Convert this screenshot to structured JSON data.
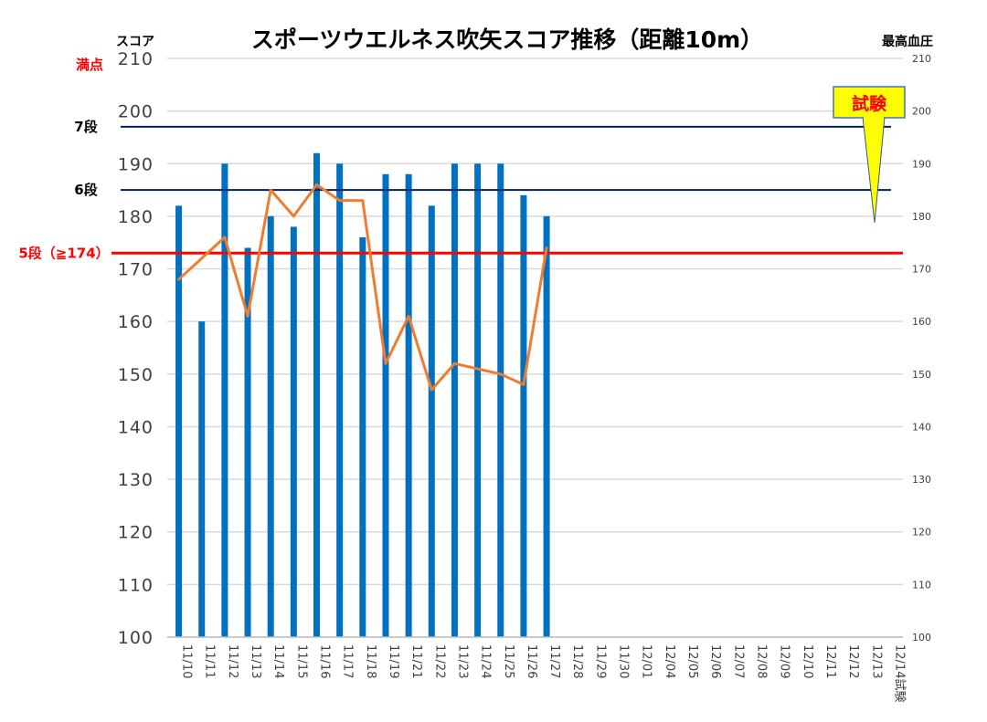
{
  "chart_data": {
    "type": "bar",
    "title": "スポーツウエルネス吹矢スコア推移（距離10m）",
    "ylabel": "スコア",
    "y2label": "最高血圧",
    "ylim": [
      100,
      210
    ],
    "y2lim": [
      100,
      210
    ],
    "y_ticks": [
      "100",
      "110",
      "120",
      "130",
      "140",
      "150",
      "160",
      "170",
      "180",
      "190",
      "200",
      "210"
    ],
    "y2_ticks": [
      "100",
      "110",
      "120",
      "130",
      "140",
      "150",
      "160",
      "170",
      "180",
      "190",
      "200",
      "210"
    ],
    "categories": [
      "11/10",
      "11/11",
      "11/12",
      "11/13",
      "11/14",
      "11/15",
      "11/16",
      "11/17",
      "11/18",
      "11/19",
      "11/21",
      "11/22",
      "11/23",
      "11/24",
      "11/25",
      "11/26",
      "11/27",
      "11/28",
      "11/29",
      "11/30",
      "12/01",
      "12/04",
      "12/05",
      "12/06",
      "12/07",
      "12/08",
      "12/09",
      "12/10",
      "12/11",
      "12/12",
      "12/13",
      "12/14試験"
    ],
    "grid": true,
    "series": [
      {
        "type": "bar",
        "axis": "left",
        "color": "#0070c0",
        "values": [
          182,
          160,
          190,
          174,
          180,
          178,
          192,
          190,
          176,
          188,
          188,
          182,
          190,
          190,
          190,
          184,
          180,
          null,
          null,
          null,
          null,
          null,
          null,
          null,
          null,
          null,
          null,
          null,
          null,
          null,
          null,
          null
        ]
      },
      {
        "type": "line",
        "axis": "right",
        "color": "#ed7d31",
        "values": [
          168,
          172,
          176,
          161,
          185,
          180,
          186,
          183,
          183,
          152,
          161,
          147,
          152,
          151,
          150,
          148,
          174,
          null,
          null,
          null,
          null,
          null,
          null,
          null,
          null,
          null,
          null,
          null,
          null,
          null,
          null,
          null
        ]
      }
    ],
    "reference_lines": [
      {
        "label": "5段（≧174）",
        "value": 173,
        "color": "#ff0000",
        "label_color": "#ff0000"
      },
      {
        "label": "6段",
        "value": 185,
        "color": "#002060",
        "label_color": "#000000"
      },
      {
        "label": "7段",
        "value": 197,
        "color": "#002060",
        "label_color": "#000000"
      }
    ],
    "max_label": {
      "label": "満点",
      "color": "#ff0000"
    },
    "callout": {
      "label": "試験",
      "fill": "#ffff00",
      "border": "#4472c4",
      "text_color": "#ff0000"
    }
  }
}
